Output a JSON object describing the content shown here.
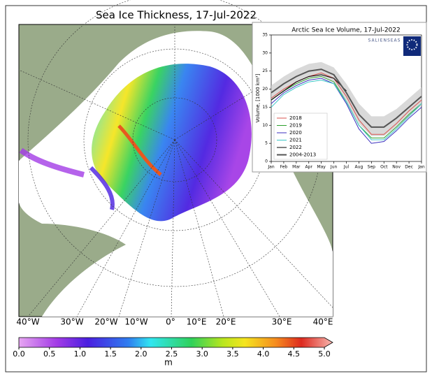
{
  "map": {
    "title": "Sea Ice Thickness, 17-Jul-2022",
    "lon_labels": [
      "40°W",
      "30°W",
      "20°W",
      "10°W",
      "0°",
      "10°E",
      "20°E",
      "30°E",
      "40°E"
    ],
    "colorbar": {
      "lim": [
        0,
        5
      ],
      "ticks": [
        {
          "value": 0,
          "label": "0.0"
        },
        0.5,
        {
          "value": 1,
          "label": "1.0"
        },
        1.5,
        {
          "value": 2,
          "label": "2.0"
        },
        2.5,
        {
          "value": 3,
          "label": "3.0"
        },
        3.5,
        {
          "value": 4,
          "label": "4.0"
        },
        4.5,
        {
          "value": 5,
          "label": "5.0"
        }
      ],
      "label": "m"
    }
  },
  "chart_data": {
    "type": "line",
    "title": "Arctic Sea Ice Volume, 17-Jul-2022",
    "ylabel": "Volume, [1000 km³]",
    "logo": "SALIENSEAS",
    "categories": [
      "Jan",
      "Feb",
      "Mar",
      "Apr",
      "May",
      "Jun",
      "Jul",
      "Aug",
      "Sep",
      "Oct",
      "Nov",
      "Dec",
      "Jan"
    ],
    "ylim": [
      0,
      35
    ],
    "yticks": [
      0,
      5,
      10,
      15,
      20,
      25,
      30,
      35
    ],
    "series": [
      {
        "name": "2018",
        "color": "#d9534f",
        "values": [
          17.5,
          20,
          22,
          23.5,
          24.5,
          23,
          18,
          11.5,
          7.5,
          7.5,
          10.5,
          14,
          17
        ]
      },
      {
        "name": "2019",
        "color": "#2ca02c",
        "values": [
          17,
          19.5,
          21.5,
          23,
          23.5,
          22,
          16.5,
          10,
          6.5,
          6.5,
          9.5,
          13,
          16
        ]
      },
      {
        "name": "2020",
        "color": "#3b2fbf",
        "values": [
          16,
          19,
          21,
          22.5,
          23,
          21.5,
          16,
          9,
          5,
          5.5,
          8.5,
          12,
          15
        ]
      },
      {
        "name": "2021",
        "color": "#3cc7c7",
        "values": [
          15,
          18.5,
          20.5,
          22,
          22.5,
          21.5,
          16.5,
          10,
          6,
          6,
          9,
          12.5,
          16
        ]
      },
      {
        "name": "2022",
        "color": "#000000",
        "values": [
          17,
          19.5,
          22,
          23.5,
          24,
          23,
          19.5,
          null,
          null,
          null,
          null,
          null,
          null
        ]
      },
      {
        "name": "2004-2013",
        "color": "#555555",
        "values": [
          19,
          21.5,
          23.5,
          25,
          25.5,
          24,
          19,
          13,
          9.5,
          9.5,
          12,
          15,
          18
        ],
        "band_upper": [
          21,
          23.5,
          25.5,
          27,
          27.5,
          26,
          21.5,
          16,
          12.5,
          12.5,
          14.5,
          17.5,
          20.5
        ],
        "band_lower": [
          17,
          19.5,
          21.5,
          23,
          23.5,
          22,
          16.5,
          10.5,
          7,
          7,
          9.5,
          12.5,
          15.5
        ]
      }
    ]
  }
}
